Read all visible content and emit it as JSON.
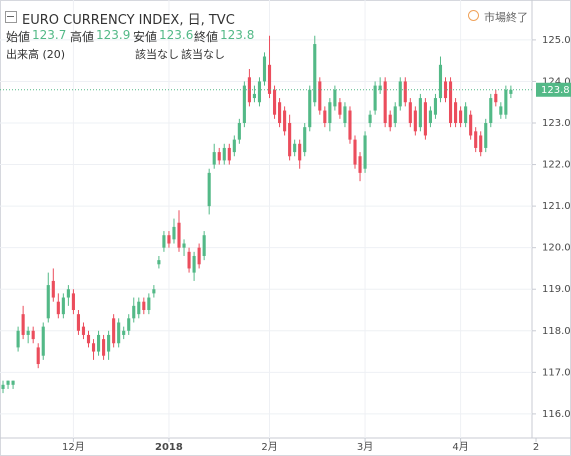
{
  "header": {
    "title": "EURO CURRENCY INDEX, 日, TVC",
    "open_label": "始値",
    "open": "123.7",
    "high_label": "高値",
    "high": "123.9",
    "low_label": "安値",
    "low": "123.6",
    "close_label": "終値",
    "close": "123.8",
    "volume_label": "出来高 (20)",
    "na1": "該当なし",
    "na2": "該当なし",
    "status": "市場終了"
  },
  "chart_data": {
    "type": "candlestick",
    "up_color": "#53b987",
    "down_color": "#eb4d5c",
    "grid": true,
    "last_price": {
      "value": 123.8,
      "label": "123.8"
    },
    "categories": [
      null,
      null,
      null,
      null,
      null,
      null,
      null,
      null,
      null,
      null,
      null,
      null,
      null,
      null,
      null,
      null,
      null,
      null,
      null,
      null,
      null,
      null,
      null,
      null,
      null,
      null,
      null,
      null,
      null,
      null,
      null,
      null,
      null,
      null,
      null,
      null,
      null,
      null,
      null,
      null,
      null,
      null,
      null,
      null,
      null,
      null,
      null,
      null,
      null,
      null,
      null,
      null,
      null,
      null,
      null,
      null,
      null,
      null,
      null,
      null,
      null,
      null,
      null,
      null,
      null,
      null,
      null,
      null,
      null,
      null,
      null,
      null,
      null,
      null,
      null,
      null,
      null,
      null,
      null,
      null,
      null,
      null,
      null,
      null,
      null,
      null,
      null,
      null,
      null,
      null,
      null,
      null,
      null,
      null,
      null,
      null,
      null,
      null,
      null,
      null,
      null,
      null
    ],
    "ohlc": [
      [
        116.6,
        116.8,
        116.5,
        116.7
      ],
      [
        116.7,
        116.8,
        116.6,
        116.8
      ],
      [
        116.7,
        116.8,
        116.6,
        116.8
      ],
      [
        117.6,
        118.1,
        117.5,
        118.0
      ],
      [
        118.4,
        118.6,
        117.8,
        117.9
      ],
      [
        117.9,
        118.1,
        117.7,
        118.0
      ],
      [
        118.0,
        118.1,
        117.7,
        117.8
      ],
      [
        117.6,
        117.7,
        117.1,
        117.2
      ],
      [
        117.4,
        118.2,
        117.3,
        118.1
      ],
      [
        118.3,
        119.4,
        118.2,
        119.1
      ],
      [
        119.2,
        119.5,
        118.7,
        118.8
      ],
      [
        118.7,
        118.9,
        118.3,
        118.4
      ],
      [
        118.4,
        118.9,
        118.3,
        118.8
      ],
      [
        118.8,
        119.1,
        118.6,
        119.0
      ],
      [
        118.9,
        119.0,
        118.4,
        118.5
      ],
      [
        118.4,
        118.5,
        117.9,
        118.0
      ],
      [
        118.1,
        118.2,
        117.8,
        117.9
      ],
      [
        117.9,
        118.0,
        117.6,
        117.7
      ],
      [
        117.7,
        117.8,
        117.3,
        117.5
      ],
      [
        117.5,
        118.0,
        117.4,
        117.9
      ],
      [
        117.8,
        117.9,
        117.3,
        117.4
      ],
      [
        117.5,
        118.0,
        117.3,
        117.9
      ],
      [
        118.3,
        118.4,
        117.6,
        117.7
      ],
      [
        117.7,
        118.3,
        117.6,
        118.2
      ],
      [
        117.9,
        118.1,
        117.8,
        118.0
      ],
      [
        118.0,
        118.4,
        117.9,
        118.3
      ],
      [
        118.3,
        118.8,
        118.2,
        118.6
      ],
      [
        118.4,
        118.8,
        118.3,
        118.7
      ],
      [
        118.7,
        118.8,
        118.4,
        118.5
      ],
      [
        118.5,
        118.9,
        118.4,
        118.8
      ],
      [
        118.9,
        119.1,
        118.8,
        119.0
      ],
      [
        119.6,
        119.8,
        119.5,
        119.7
      ],
      [
        120.0,
        120.4,
        119.9,
        120.3
      ],
      [
        120.3,
        120.4,
        120.0,
        120.1
      ],
      [
        120.2,
        120.7,
        120.1,
        120.5
      ],
      [
        120.6,
        120.9,
        119.9,
        120.0
      ],
      [
        120.0,
        120.2,
        119.8,
        120.1
      ],
      [
        119.9,
        120.0,
        119.4,
        119.5
      ],
      [
        119.4,
        119.9,
        119.2,
        119.8
      ],
      [
        120.0,
        120.1,
        119.5,
        119.6
      ],
      [
        119.8,
        120.4,
        119.7,
        120.3
      ],
      [
        121.0,
        121.9,
        120.8,
        121.8
      ],
      [
        122.0,
        122.5,
        121.9,
        122.3
      ],
      [
        122.3,
        122.4,
        122.0,
        122.1
      ],
      [
        122.1,
        122.5,
        122.0,
        122.4
      ],
      [
        122.4,
        122.5,
        122.0,
        122.1
      ],
      [
        122.3,
        122.7,
        122.2,
        122.6
      ],
      [
        122.6,
        123.1,
        122.5,
        123.0
      ],
      [
        123.0,
        124.0,
        122.9,
        123.9
      ],
      [
        124.1,
        124.3,
        123.4,
        123.5
      ],
      [
        123.6,
        123.9,
        123.5,
        123.7
      ],
      [
        123.5,
        124.1,
        123.4,
        124.0
      ],
      [
        124.0,
        124.7,
        123.9,
        124.6
      ],
      [
        124.4,
        125.1,
        123.6,
        123.7
      ],
      [
        123.8,
        123.9,
        123.1,
        123.2
      ],
      [
        123.5,
        123.6,
        122.9,
        123.0
      ],
      [
        123.3,
        123.4,
        122.7,
        122.8
      ],
      [
        123.0,
        123.2,
        122.1,
        122.2
      ],
      [
        122.3,
        122.6,
        122.2,
        122.5
      ],
      [
        122.5,
        122.6,
        121.9,
        122.1
      ],
      [
        122.3,
        123.0,
        122.2,
        122.9
      ],
      [
        122.9,
        123.9,
        122.8,
        123.8
      ],
      [
        123.5,
        125.1,
        123.4,
        124.9
      ],
      [
        124.0,
        124.1,
        123.2,
        123.3
      ],
      [
        123.3,
        123.4,
        122.9,
        123.0
      ],
      [
        123.0,
        123.6,
        122.8,
        123.5
      ],
      [
        123.4,
        123.9,
        123.3,
        123.8
      ],
      [
        123.5,
        123.6,
        123.1,
        123.2
      ],
      [
        123.0,
        123.5,
        122.9,
        123.4
      ],
      [
        123.3,
        123.4,
        122.5,
        122.6
      ],
      [
        122.6,
        122.7,
        121.9,
        122.0
      ],
      [
        122.2,
        122.3,
        121.6,
        121.8
      ],
      [
        121.9,
        122.8,
        121.8,
        122.7
      ],
      [
        123.0,
        123.3,
        122.9,
        123.2
      ],
      [
        123.3,
        124.0,
        123.2,
        123.9
      ],
      [
        123.8,
        124.1,
        123.7,
        123.9
      ],
      [
        124.0,
        124.1,
        122.9,
        123.0
      ],
      [
        123.2,
        123.3,
        122.8,
        122.9
      ],
      [
        123.0,
        123.5,
        122.9,
        123.4
      ],
      [
        123.4,
        124.1,
        123.3,
        124.0
      ],
      [
        124.0,
        124.1,
        123.4,
        123.5
      ],
      [
        123.5,
        123.6,
        122.9,
        123.0
      ],
      [
        123.3,
        123.4,
        122.7,
        122.8
      ],
      [
        122.9,
        123.7,
        122.8,
        123.6
      ],
      [
        123.5,
        123.6,
        122.6,
        122.7
      ],
      [
        123.0,
        123.4,
        122.9,
        123.3
      ],
      [
        123.2,
        123.7,
        123.1,
        123.6
      ],
      [
        123.6,
        124.6,
        123.5,
        124.4
      ],
      [
        124.0,
        124.1,
        123.5,
        123.6
      ],
      [
        124.0,
        124.1,
        122.9,
        123.0
      ],
      [
        123.5,
        123.6,
        122.9,
        123.0
      ],
      [
        123.3,
        123.4,
        122.9,
        123.0
      ],
      [
        123.0,
        123.5,
        122.9,
        123.4
      ],
      [
        123.2,
        123.3,
        122.6,
        122.7
      ],
      [
        122.8,
        122.9,
        122.3,
        122.4
      ],
      [
        122.7,
        122.8,
        122.2,
        122.3
      ],
      [
        122.4,
        123.1,
        122.3,
        123.0
      ],
      [
        123.0,
        123.7,
        122.9,
        123.6
      ],
      [
        123.7,
        123.8,
        123.4,
        123.5
      ],
      [
        123.2,
        123.5,
        123.1,
        123.4
      ],
      [
        123.2,
        123.9,
        123.1,
        123.8
      ],
      [
        123.7,
        123.9,
        123.6,
        123.8
      ]
    ],
    "xlim": [
      -0.6,
      105.2
    ],
    "xticks": [
      {
        "value": 14,
        "label": "12月"
      },
      {
        "value": 33,
        "label": "2018"
      },
      {
        "value": 53,
        "label": "2月"
      },
      {
        "value": 72,
        "label": "3月"
      },
      {
        "value": 91,
        "label": "4月"
      },
      {
        "value": 106,
        "label": "2"
      }
    ],
    "ylim": [
      115.42,
      125.96
    ],
    "yticks": [
      {
        "value": 116,
        "label": "116.0"
      },
      {
        "value": 117,
        "label": "117.0"
      },
      {
        "value": 118,
        "label": "118.0"
      },
      {
        "value": 119,
        "label": "119.0"
      },
      {
        "value": 120,
        "label": "120.0"
      },
      {
        "value": 121,
        "label": "121.0"
      },
      {
        "value": 122,
        "label": "122.0"
      },
      {
        "value": 123,
        "label": "123.0"
      },
      {
        "value": 124,
        "label": "124.0"
      },
      {
        "value": 125,
        "label": "125.0"
      }
    ]
  }
}
